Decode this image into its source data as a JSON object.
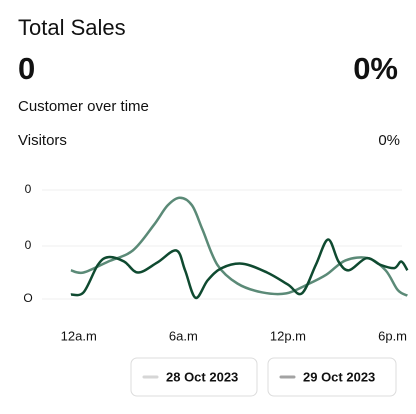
{
  "header": {
    "title": "Total Sales",
    "total": "0",
    "change": "0%"
  },
  "section": {
    "title": "Customer over time",
    "metric": "Visitors",
    "metric_change": "0%"
  },
  "chart_data": {
    "type": "line",
    "y_axis_labels": [
      "0",
      "0",
      "O"
    ],
    "xlim": [
      -0.5,
      19
    ],
    "ylim": [
      0,
      100
    ],
    "xticks": [
      {
        "value": 0,
        "label": "12a.m"
      },
      {
        "value": 6,
        "label": "6a.m"
      },
      {
        "value": 12,
        "label": "12p.m"
      },
      {
        "value": 18,
        "label": "6p.m"
      }
    ],
    "grid": true,
    "series": [
      {
        "name": "28 Oct 2023",
        "color": "#5b8a77",
        "legend_color": "#d6d6d6",
        "x": [
          -0.45,
          0.28,
          1.7,
          3.1,
          4.3,
          5.1,
          5.8,
          6.5,
          7.1,
          7.95,
          9.1,
          10.5,
          11.9,
          13.1,
          14.2,
          15.3,
          16.6,
          17.6,
          18.3,
          18.85
        ],
        "values": [
          27,
          25,
          35,
          45,
          68,
          86,
          93,
          86,
          64,
          32,
          15,
          7,
          6,
          14,
          23,
          36,
          38,
          27,
          9,
          4
        ]
      },
      {
        "name": "29 Oct 2023",
        "color": "#0f4a30",
        "legend_color": "#a3a3a3",
        "x": [
          -0.45,
          0.28,
          1.1,
          1.7,
          2.6,
          3.4,
          4.5,
          5.6,
          6.1,
          6.7,
          7.4,
          8.2,
          9.4,
          10.8,
          12.0,
          12.8,
          13.6,
          14.3,
          14.9,
          15.5,
          16.5,
          17.3,
          18.1,
          18.5,
          18.85
        ],
        "values": [
          5,
          7,
          32,
          39,
          35,
          25,
          34,
          45,
          27,
          2,
          18,
          29,
          33,
          25,
          14,
          6,
          32,
          55,
          35,
          27,
          38,
          32,
          29,
          35,
          27
        ]
      }
    ]
  }
}
